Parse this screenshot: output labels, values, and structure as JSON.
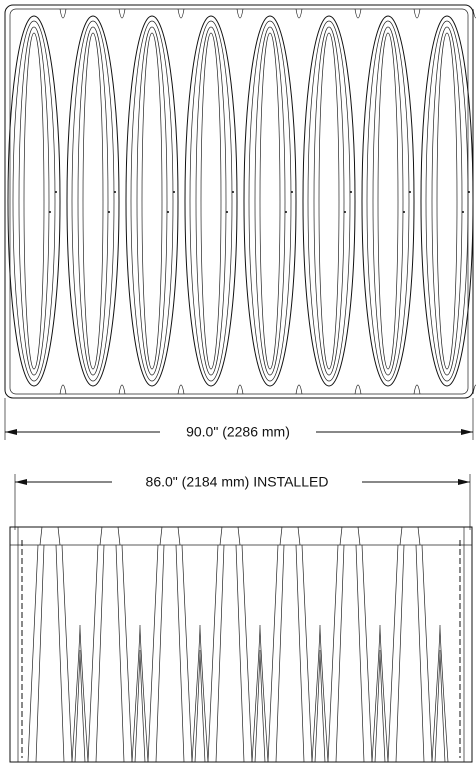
{
  "drawing": {
    "top_view_dimension": "90.0\" (2286 mm)",
    "bottom_view_dimension": "86.0\" (2184 mm) INSTALLED"
  }
}
